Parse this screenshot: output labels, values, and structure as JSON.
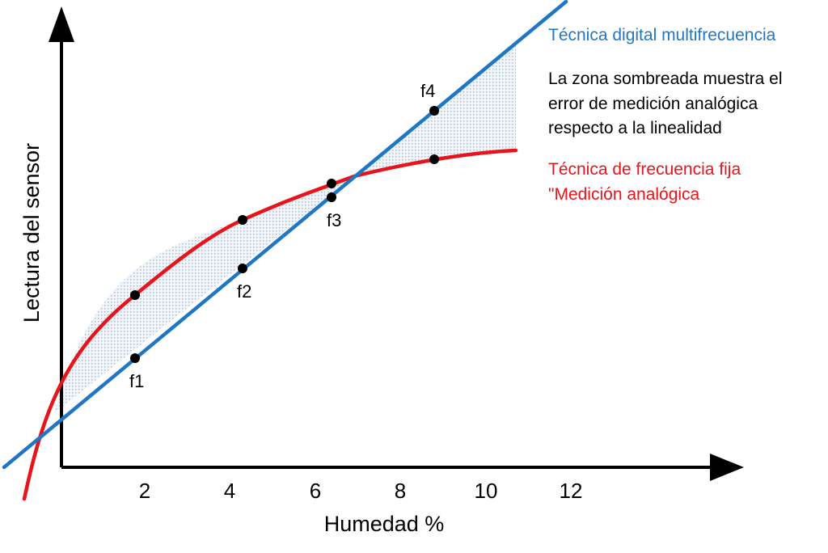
{
  "diagram": {
    "xlabel": "Humedad %",
    "ylabel": "Lectura del sensor",
    "xticks": [
      "2",
      "4",
      "6",
      "8",
      "10",
      "12"
    ],
    "point_labels": [
      "f1",
      "f2",
      "f3",
      "f4"
    ],
    "legend": {
      "digital": "Técnica digital multifrecuencia",
      "note_line1": "La zona sombreada muestra el",
      "note_line2": "error de medición analógica",
      "note_line3": "respecto a la linealidad",
      "fixed_line1": "Técnica de frecuencia fija",
      "fixed_line2": "\"Medición analógica"
    },
    "colors": {
      "digital": "#1f77c4",
      "fixed": "#e8141c",
      "shade": "#cfdff0",
      "axis": "#000000",
      "note": "#000000"
    }
  }
}
